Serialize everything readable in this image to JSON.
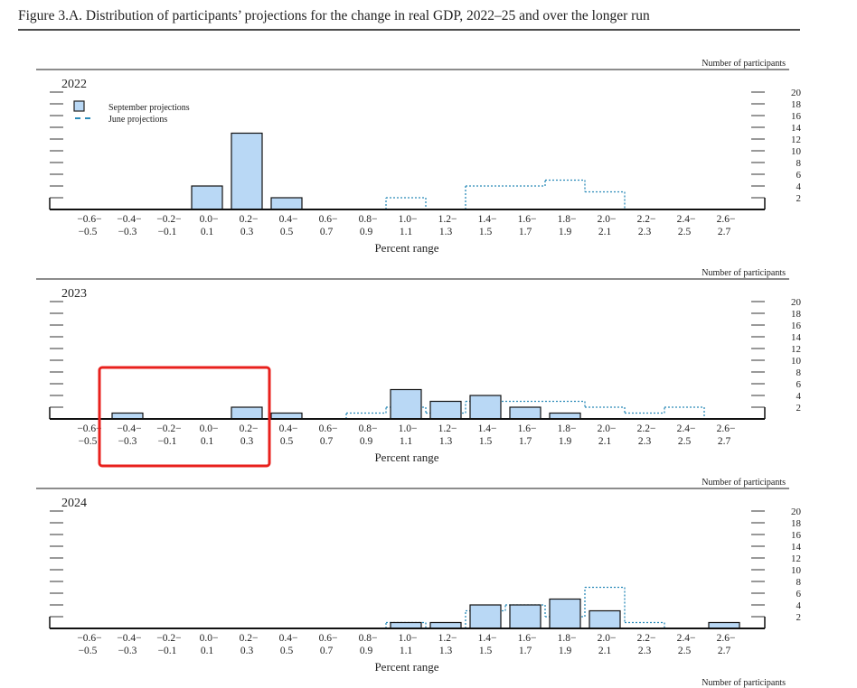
{
  "title": "Figure 3.A. Distribution of participants’ projections for the change in real GDP, 2022–25 and over the longer run",
  "legend": {
    "september": "September projections",
    "june": "June projections"
  },
  "colors": {
    "september_fill": "#b9d8f5",
    "june_line": "#2a8ab8",
    "highlight": "#e8201c"
  },
  "chart_data": [
    {
      "type": "bar",
      "title": "2022",
      "xlabel": "Percent range",
      "ylabel": "Number of participants",
      "yticks": [
        "20",
        "18",
        "16",
        "14",
        "12",
        "10",
        "8",
        "6",
        "4",
        "2"
      ],
      "ylim": [
        0,
        20
      ],
      "categories_top": [
        "−0.6−",
        "−0.4−",
        "−0.2−",
        "0.0−",
        "0.2−",
        "0.4−",
        "0.6−",
        "0.8−",
        "1.0−",
        "1.2−",
        "1.4−",
        "1.6−",
        "1.8−",
        "2.0−",
        "2.2−",
        "2.4−",
        "2.6−"
      ],
      "categories_bottom": [
        "−0.5",
        "−0.3",
        "−0.1",
        "0.1",
        "0.3",
        "0.5",
        "0.7",
        "0.9",
        "1.1",
        "1.3",
        "1.5",
        "1.7",
        "1.9",
        "2.1",
        "2.3",
        "2.5",
        "2.7"
      ],
      "series": [
        {
          "name": "September projections",
          "style": "bar",
          "values": [
            0,
            0,
            0,
            4,
            13,
            2,
            0,
            0,
            0,
            0,
            0,
            0,
            0,
            0,
            0,
            0,
            0
          ]
        },
        {
          "name": "June projections",
          "style": "dotted-step",
          "values": [
            0,
            0,
            0,
            0,
            0,
            0,
            0,
            0,
            2,
            0,
            4,
            4,
            5,
            3,
            0,
            0,
            0
          ]
        }
      ],
      "legend_position": "top-left"
    },
    {
      "type": "bar",
      "title": "2023",
      "xlabel": "Percent range",
      "ylabel": "Number of participants",
      "yticks": [
        "20",
        "18",
        "16",
        "14",
        "12",
        "10",
        "8",
        "6",
        "4",
        "2"
      ],
      "ylim": [
        0,
        20
      ],
      "categories_top": [
        "−0.6−",
        "−0.4−",
        "−0.2−",
        "0.0−",
        "0.2−",
        "0.4−",
        "0.6−",
        "0.8−",
        "1.0−",
        "1.2−",
        "1.4−",
        "1.6−",
        "1.8−",
        "2.0−",
        "2.2−",
        "2.4−",
        "2.6−"
      ],
      "categories_bottom": [
        "−0.5",
        "−0.3",
        "−0.1",
        "0.1",
        "0.3",
        "0.5",
        "0.7",
        "0.9",
        "1.1",
        "1.3",
        "1.5",
        "1.7",
        "1.9",
        "2.1",
        "2.3",
        "2.5",
        "2.7"
      ],
      "series": [
        {
          "name": "September projections",
          "style": "bar",
          "values": [
            0,
            1,
            0,
            0,
            2,
            1,
            0,
            0,
            5,
            3,
            4,
            2,
            1,
            0,
            0,
            0,
            0
          ]
        },
        {
          "name": "June projections",
          "style": "dotted-step",
          "values": [
            0,
            0,
            0,
            0,
            0,
            0,
            0,
            1,
            2,
            1,
            3,
            3,
            3,
            2,
            1,
            2,
            0
          ]
        }
      ],
      "highlight_range": [
        "−0.4−−0.3",
        "0.2−0.3"
      ]
    },
    {
      "type": "bar",
      "title": "2024",
      "xlabel": "Percent range",
      "ylabel": "Number of participants",
      "yticks": [
        "20",
        "18",
        "16",
        "14",
        "12",
        "10",
        "8",
        "6",
        "4",
        "2"
      ],
      "ylim": [
        0,
        20
      ],
      "categories_top": [
        "−0.6−",
        "−0.4−",
        "−0.2−",
        "0.0−",
        "0.2−",
        "0.4−",
        "0.6−",
        "0.8−",
        "1.0−",
        "1.2−",
        "1.4−",
        "1.6−",
        "1.8−",
        "2.0−",
        "2.2−",
        "2.4−",
        "2.6−"
      ],
      "categories_bottom": [
        "−0.5",
        "−0.3",
        "−0.1",
        "0.1",
        "0.3",
        "0.5",
        "0.7",
        "0.9",
        "1.1",
        "1.3",
        "1.5",
        "1.7",
        "1.9",
        "2.1",
        "2.3",
        "2.5",
        "2.7"
      ],
      "series": [
        {
          "name": "September projections",
          "style": "bar",
          "values": [
            0,
            0,
            0,
            0,
            0,
            0,
            0,
            0,
            1,
            1,
            4,
            4,
            5,
            3,
            0,
            0,
            1
          ]
        },
        {
          "name": "June projections",
          "style": "dotted-step",
          "values": [
            0,
            0,
            0,
            0,
            0,
            0,
            0,
            0,
            1,
            0,
            3,
            4,
            2,
            7,
            1,
            0,
            0
          ]
        }
      ]
    }
  ],
  "next_panel_ylabel": "Number of participants"
}
